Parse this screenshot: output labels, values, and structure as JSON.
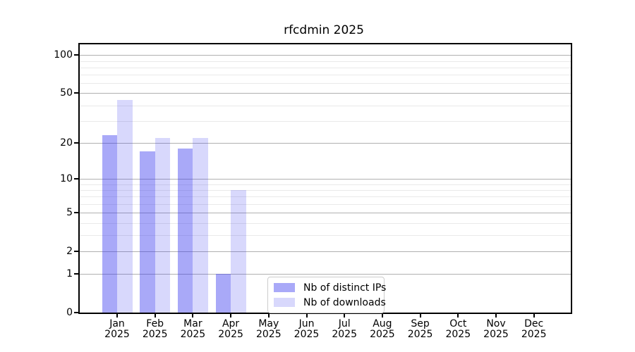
{
  "chart_data": {
    "type": "bar",
    "title": "rfcdmin 2025",
    "categories": [
      {
        "month": "Jan",
        "year": "2025"
      },
      {
        "month": "Feb",
        "year": "2025"
      },
      {
        "month": "Mar",
        "year": "2025"
      },
      {
        "month": "Apr",
        "year": "2025"
      },
      {
        "month": "May",
        "year": "2025"
      },
      {
        "month": "Jun",
        "year": "2025"
      },
      {
        "month": "Jul",
        "year": "2025"
      },
      {
        "month": "Aug",
        "year": "2025"
      },
      {
        "month": "Sep",
        "year": "2025"
      },
      {
        "month": "Oct",
        "year": "2025"
      },
      {
        "month": "Nov",
        "year": "2025"
      },
      {
        "month": "Dec",
        "year": "2025"
      }
    ],
    "series": [
      {
        "name": "Nb of distinct IPs",
        "slug": "distinct-ips",
        "color": "rgba(50,50,238,0.42)",
        "solid_color": "#a9a9f8",
        "values": [
          23,
          17,
          18,
          1,
          0,
          0,
          0,
          0,
          0,
          0,
          0,
          0
        ]
      },
      {
        "name": "Nb of downloads",
        "slug": "downloads",
        "color": "rgba(50,50,238,0.19)",
        "solid_color": "#d9d9f8",
        "values": [
          44,
          22,
          22,
          8,
          0,
          0,
          0,
          0,
          0,
          0,
          0,
          0
        ]
      }
    ],
    "yscale": "log1p",
    "ylim": [
      0,
      121.5
    ],
    "yticks_major": [
      0,
      1,
      2,
      5,
      10,
      20,
      50,
      100
    ],
    "yticks_minor": [
      3,
      4,
      6,
      7,
      8,
      9,
      30,
      40,
      60,
      70,
      80,
      90
    ],
    "grid": "on",
    "legend_position": "lower center"
  },
  "colors": {
    "background": "#ffffff",
    "axis": "#000000",
    "grid_major": "#b0b0b0",
    "grid_minor": "#e9e9e9",
    "legend_border": "#cccccc",
    "text": "#000000"
  }
}
